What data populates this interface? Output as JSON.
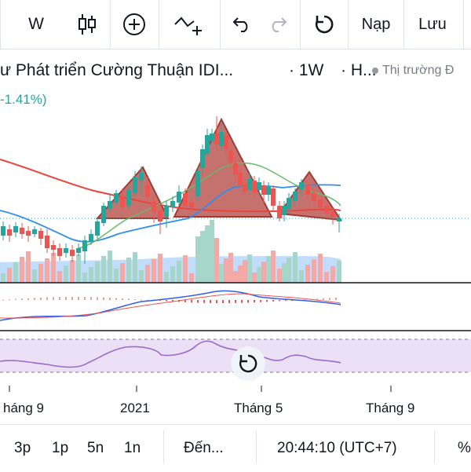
{
  "toolbar": {
    "interval_label": "W",
    "load_label": "Nạp",
    "save_label": "Lưu",
    "icons": [
      "candles-icon",
      "add-indicator-icon",
      "compare-icon",
      "undo-icon",
      "redo-icon",
      "refresh-icon"
    ]
  },
  "symbol": {
    "title": "ư Phát triển Cường Thuận IDI...",
    "interval": "· 1W",
    "type": "· H...",
    "status": "Thị trường Đ",
    "change": "-1.41%)"
  },
  "time_axis": {
    "labels": [
      "háng 9",
      "2021",
      "Tháng 5",
      "Tháng 9"
    ]
  },
  "bottom_bar": {
    "ranges": [
      "3p",
      "1p",
      "5n",
      "1n"
    ],
    "goto_label": "Đến...",
    "clock": "20:44:10 (UTC+7)",
    "percent_label": "%"
  },
  "colors": {
    "up": "#26a69a",
    "down": "#ef5350",
    "pattern_fill": "#b2433f",
    "ma_red": "#e8453c",
    "ma_blue": "#2f8fe8",
    "ma_green": "#66bb6a",
    "rsi_line": "#9c6bc8"
  }
}
